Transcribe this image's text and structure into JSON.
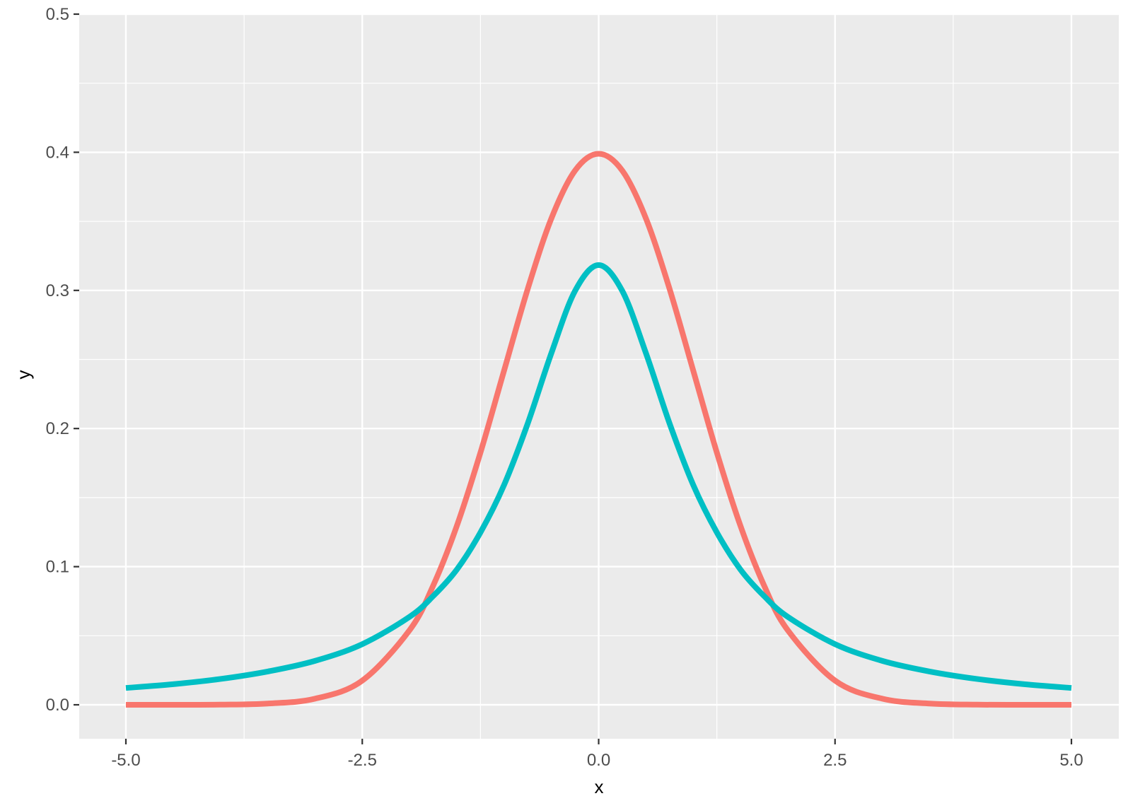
{
  "chart_data": {
    "type": "line",
    "title": "",
    "xlabel": "x",
    "ylabel": "y",
    "xlim": [
      -5.0,
      5.0
    ],
    "ylim": [
      0.0,
      0.5
    ],
    "x_ticks": [
      "-5.0",
      "-2.5",
      "0.0",
      "2.5",
      "5.0"
    ],
    "x_tick_values": [
      -5.0,
      -2.5,
      0.0,
      2.5,
      5.0
    ],
    "y_ticks": [
      "0.0",
      "0.1",
      "0.2",
      "0.3",
      "0.4",
      "0.5"
    ],
    "y_tick_values": [
      0.0,
      0.1,
      0.2,
      0.3,
      0.4,
      0.5
    ],
    "grid": true,
    "legend": "none",
    "panel_background": "#EBEBEB",
    "grid_color": "#FFFFFF",
    "series": [
      {
        "color": "#F8766D",
        "x": [
          -5.0,
          -4.5,
          -4.0,
          -3.5,
          -3.0,
          -2.5,
          -2.0,
          -1.75,
          -1.5,
          -1.25,
          -1.0,
          -0.75,
          -0.5,
          -0.25,
          0.0,
          0.25,
          0.5,
          0.75,
          1.0,
          1.25,
          1.5,
          1.75,
          2.0,
          2.5,
          3.0,
          3.5,
          4.0,
          4.5,
          5.0
        ],
        "y": [
          0.0,
          0.0,
          0.0001,
          0.0009,
          0.0044,
          0.0175,
          0.054,
          0.0863,
          0.1295,
          0.1826,
          0.242,
          0.3011,
          0.3521,
          0.3867,
          0.3989,
          0.3867,
          0.3521,
          0.3011,
          0.242,
          0.1826,
          0.1295,
          0.0863,
          0.054,
          0.0175,
          0.0044,
          0.0009,
          0.0001,
          0.0,
          0.0
        ]
      },
      {
        "color": "#00BFC4",
        "x": [
          -5.0,
          -4.5,
          -4.0,
          -3.5,
          -3.0,
          -2.5,
          -2.0,
          -1.75,
          -1.5,
          -1.25,
          -1.0,
          -0.75,
          -0.5,
          -0.25,
          0.0,
          0.25,
          0.5,
          0.75,
          1.0,
          1.25,
          1.5,
          1.75,
          2.0,
          2.5,
          3.0,
          3.5,
          4.0,
          4.5,
          5.0
        ],
        "y": [
          0.0122,
          0.0149,
          0.0187,
          0.0241,
          0.0318,
          0.0439,
          0.0637,
          0.0787,
          0.0979,
          0.1248,
          0.1592,
          0.2037,
          0.2546,
          0.2996,
          0.3183,
          0.2996,
          0.2546,
          0.2037,
          0.1592,
          0.1248,
          0.0979,
          0.0787,
          0.0637,
          0.0439,
          0.0318,
          0.0241,
          0.0187,
          0.0149,
          0.0122
        ]
      }
    ]
  }
}
